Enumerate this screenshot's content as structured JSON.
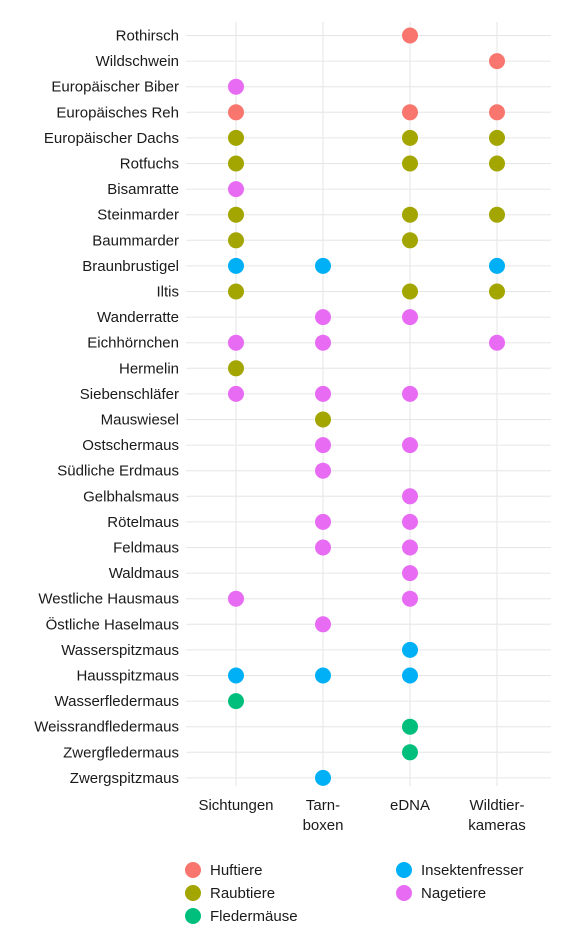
{
  "chart_data": {
    "type": "scatter",
    "title": "",
    "xlabel": "",
    "ylabel": "",
    "grid": true,
    "legend_position": "bottom",
    "x_categories": [
      {
        "key": "sichtungen",
        "lines": [
          "Sichtungen"
        ]
      },
      {
        "key": "tarnboxen",
        "lines": [
          "Tarn-",
          "boxen"
        ]
      },
      {
        "key": "edna",
        "lines": [
          "eDNA"
        ]
      },
      {
        "key": "wildtierkameras",
        "lines": [
          "Wildtier-",
          "kameras"
        ]
      }
    ],
    "groups": [
      {
        "key": "huftiere",
        "name": "Huftiere",
        "color": "#F8766D"
      },
      {
        "key": "raubtiere",
        "name": "Raubtiere",
        "color": "#A3A500"
      },
      {
        "key": "fledermaeuse",
        "name": "Fledermäuse",
        "color": "#00BF7D"
      },
      {
        "key": "insektenfresser",
        "name": "Insektenfresser",
        "color": "#00B0F6"
      },
      {
        "key": "nagetiere",
        "name": "Nagetiere",
        "color": "#E76BF3"
      }
    ],
    "species": [
      {
        "name": "Rothirsch",
        "group": "huftiere",
        "methods": [
          "edna"
        ]
      },
      {
        "name": "Wildschwein",
        "group": "huftiere",
        "methods": [
          "wildtierkameras"
        ]
      },
      {
        "name": "Europäischer Biber",
        "group": "nagetiere",
        "methods": [
          "sichtungen"
        ]
      },
      {
        "name": "Europäisches Reh",
        "group": "huftiere",
        "methods": [
          "sichtungen",
          "edna",
          "wildtierkameras"
        ]
      },
      {
        "name": "Europäischer Dachs",
        "group": "raubtiere",
        "methods": [
          "sichtungen",
          "edna",
          "wildtierkameras"
        ]
      },
      {
        "name": "Rotfuchs",
        "group": "raubtiere",
        "methods": [
          "sichtungen",
          "edna",
          "wildtierkameras"
        ]
      },
      {
        "name": "Bisamratte",
        "group": "nagetiere",
        "methods": [
          "sichtungen"
        ]
      },
      {
        "name": "Steinmarder",
        "group": "raubtiere",
        "methods": [
          "sichtungen",
          "edna",
          "wildtierkameras"
        ]
      },
      {
        "name": "Baummarder",
        "group": "raubtiere",
        "methods": [
          "sichtungen",
          "edna"
        ]
      },
      {
        "name": "Braunbrustigel",
        "group": "insektenfresser",
        "methods": [
          "sichtungen",
          "tarnboxen",
          "wildtierkameras"
        ]
      },
      {
        "name": "Iltis",
        "group": "raubtiere",
        "methods": [
          "sichtungen",
          "edna",
          "wildtierkameras"
        ]
      },
      {
        "name": "Wanderratte",
        "group": "nagetiere",
        "methods": [
          "tarnboxen",
          "edna"
        ]
      },
      {
        "name": "Eichhörnchen",
        "group": "nagetiere",
        "methods": [
          "sichtungen",
          "tarnboxen",
          "wildtierkameras"
        ]
      },
      {
        "name": "Hermelin",
        "group": "raubtiere",
        "methods": [
          "sichtungen"
        ]
      },
      {
        "name": "Siebenschläfer",
        "group": "nagetiere",
        "methods": [
          "sichtungen",
          "tarnboxen",
          "edna"
        ]
      },
      {
        "name": "Mauswiesel",
        "group": "raubtiere",
        "methods": [
          "tarnboxen"
        ]
      },
      {
        "name": "Ostschermaus",
        "group": "nagetiere",
        "methods": [
          "tarnboxen",
          "edna"
        ]
      },
      {
        "name": "Südliche Erdmaus",
        "group": "nagetiere",
        "methods": [
          "tarnboxen"
        ]
      },
      {
        "name": "Gelbhalsmaus",
        "group": "nagetiere",
        "methods": [
          "edna"
        ]
      },
      {
        "name": "Rötelmaus",
        "group": "nagetiere",
        "methods": [
          "tarnboxen",
          "edna"
        ]
      },
      {
        "name": "Feldmaus",
        "group": "nagetiere",
        "methods": [
          "tarnboxen",
          "edna"
        ]
      },
      {
        "name": "Waldmaus",
        "group": "nagetiere",
        "methods": [
          "edna"
        ]
      },
      {
        "name": "Westliche Hausmaus",
        "group": "nagetiere",
        "methods": [
          "sichtungen",
          "edna"
        ]
      },
      {
        "name": "Östliche Haselmaus",
        "group": "nagetiere",
        "methods": [
          "tarnboxen"
        ]
      },
      {
        "name": "Wasserspitzmaus",
        "group": "insektenfresser",
        "methods": [
          "edna"
        ]
      },
      {
        "name": "Hausspitzmaus",
        "group": "insektenfresser",
        "methods": [
          "sichtungen",
          "tarnboxen",
          "edna"
        ]
      },
      {
        "name": "Wasserfledermaus",
        "group": "fledermaeuse",
        "methods": [
          "sichtungen"
        ]
      },
      {
        "name": "Weissrandfledermaus",
        "group": "fledermaeuse",
        "methods": [
          "edna"
        ]
      },
      {
        "name": "Zwergfledermaus",
        "group": "fledermaeuse",
        "methods": [
          "edna"
        ]
      },
      {
        "name": "Zwergspitzmaus",
        "group": "insektenfresser",
        "methods": [
          "tarnboxen"
        ]
      }
    ]
  }
}
